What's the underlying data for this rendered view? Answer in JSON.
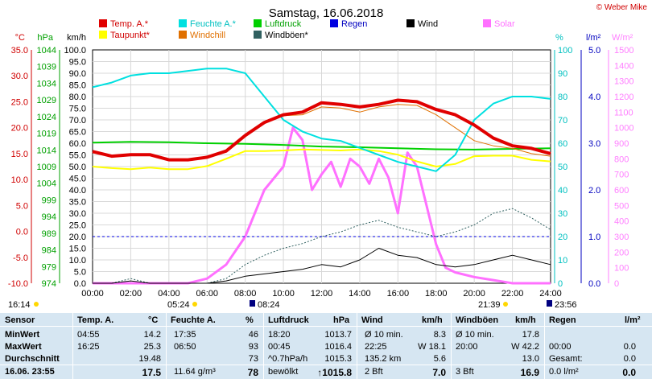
{
  "copyright": "© Weber Mike",
  "chart_data": {
    "type": "line",
    "title": "Samstag, 16.06.2018",
    "x_ticks": [
      "00:00",
      "02:00",
      "04:00",
      "06:00",
      "08:00",
      "10:00",
      "12:00",
      "14:00",
      "16:00",
      "18:00",
      "20:00",
      "22:00",
      "24:00"
    ],
    "xlim": [
      0,
      24
    ],
    "axes": {
      "temp": {
        "label": "°C",
        "ylim": [
          -10,
          35
        ],
        "ticks": [
          "35.0",
          "30.0",
          "25.0",
          "20.0",
          "15.0",
          "10.0",
          "5.0",
          "0.0",
          "-5.0",
          "-10.0"
        ],
        "color": "#d00000"
      },
      "pressure": {
        "label": "hPa",
        "ylim": [
          974,
          1044
        ],
        "ticks": [
          "1044",
          "1039",
          "1034",
          "1029",
          "1024",
          "1019",
          "1014",
          "1009",
          "1004",
          "999",
          "994",
          "989",
          "984",
          "979",
          "974"
        ],
        "color": "#00a000"
      },
      "wind": {
        "label": "km/h",
        "ylim": [
          0,
          100
        ],
        "ticks": [
          "100.0",
          "95.0",
          "90.0",
          "85.0",
          "80.0",
          "75.0",
          "70.0",
          "65.0",
          "60.0",
          "55.0",
          "50.0",
          "45.0",
          "40.0",
          "35.0",
          "30.0",
          "25.0",
          "20.0",
          "15.0",
          "10.0",
          "5.0",
          "0.0"
        ],
        "color": "#000000"
      },
      "humidity": {
        "label": "%",
        "ylim": [
          0,
          100
        ],
        "ticks": [
          "100",
          "90",
          "80",
          "70",
          "60",
          "50",
          "40",
          "30",
          "20",
          "10",
          "0"
        ],
        "color": "#00c0c0"
      },
      "rain": {
        "label": "l/m²",
        "ylim": [
          0,
          5
        ],
        "ticks": [
          "5.0",
          "4.0",
          "3.0",
          "2.0",
          "1.0",
          "0.0"
        ],
        "color": "#0000c0"
      },
      "solar": {
        "label": "W/m²",
        "ylim": [
          0,
          1500
        ],
        "ticks": [
          "1500",
          "1400",
          "1300",
          "1200",
          "1100",
          "1000",
          "900",
          "800",
          "700",
          "600",
          "500",
          "400",
          "300",
          "200",
          "100",
          "0"
        ],
        "color": "#ff80ff"
      }
    },
    "legend": [
      {
        "name": "Temp. A.*",
        "color": "#e00000"
      },
      {
        "name": "Feuchte A.*",
        "color": "#00e0e0"
      },
      {
        "name": "Luftdruck",
        "color": "#00d000"
      },
      {
        "name": "Regen",
        "color": "#0000e0"
      },
      {
        "name": "Wind",
        "color": "#000000"
      },
      {
        "name": "Solar",
        "color": "#ff70ff"
      },
      {
        "name": "Taupunkt*",
        "color": "#ffff00"
      },
      {
        "name": "Windchill",
        "color": "#e07000"
      },
      {
        "name": "Windböen*",
        "color": "#306060"
      }
    ],
    "series": [
      {
        "name": "Temp. A.*",
        "axis": "temp",
        "x": [
          0,
          1,
          2,
          3,
          4,
          5,
          6,
          7,
          8,
          9,
          10,
          11,
          12,
          13,
          14,
          15,
          16,
          17,
          18,
          19,
          20,
          21,
          22,
          23,
          24
        ],
        "y": [
          15.4,
          14.5,
          14.8,
          14.8,
          13.8,
          13.8,
          14.3,
          15.5,
          18.5,
          21.0,
          22.5,
          23.0,
          24.8,
          24.5,
          24.0,
          24.5,
          25.3,
          25.0,
          23.5,
          22.5,
          20.5,
          18.0,
          16.5,
          16.0,
          15.0
        ]
      },
      {
        "name": "Feuchte A.*",
        "axis": "humidity",
        "x": [
          0,
          1,
          2,
          3,
          4,
          5,
          6,
          7,
          8,
          9,
          10,
          11,
          12,
          13,
          14,
          15,
          16,
          17,
          18,
          19,
          20,
          21,
          22,
          23,
          24
        ],
        "y": [
          84,
          86,
          89,
          90,
          90,
          91,
          92,
          92,
          90,
          80,
          70,
          65,
          62,
          61,
          58,
          55,
          52,
          50,
          48,
          55,
          70,
          77,
          80,
          80,
          79
        ]
      },
      {
        "name": "Taupunkt*",
        "axis": "temp",
        "x": [
          0,
          1,
          2,
          3,
          4,
          5,
          6,
          7,
          8,
          9,
          10,
          11,
          12,
          13,
          14,
          15,
          16,
          17,
          18,
          19,
          20,
          21,
          22,
          23,
          24
        ],
        "y": [
          12.5,
          12.2,
          12.0,
          12.3,
          12.0,
          12.0,
          12.6,
          14.0,
          15.5,
          15.5,
          15.6,
          15.8,
          15.7,
          15.6,
          15.8,
          15.5,
          14.8,
          13.5,
          12.5,
          13.0,
          14.5,
          14.6,
          14.6,
          13.8,
          13.5
        ]
      },
      {
        "name": "Windchill",
        "axis": "temp",
        "x": [
          0,
          1,
          2,
          3,
          4,
          5,
          6,
          7,
          8,
          9,
          10,
          11,
          12,
          13,
          14,
          15,
          16,
          17,
          18,
          19,
          20,
          21,
          22,
          23,
          24
        ],
        "y": [
          15.4,
          14.5,
          14.8,
          14.8,
          13.8,
          13.8,
          14.3,
          15.5,
          18.3,
          20.8,
          22.3,
          22.5,
          24.0,
          23.8,
          23.0,
          24.0,
          24.5,
          24.3,
          22.5,
          20.0,
          17.5,
          16.5,
          16.0,
          15.0,
          14.5
        ]
      },
      {
        "name": "Luftdruck",
        "axis": "pressure",
        "x": [
          0,
          2,
          4,
          6,
          8,
          10,
          12,
          14,
          16,
          18,
          20,
          22,
          24
        ],
        "y": [
          1016.2,
          1016.4,
          1016.3,
          1016.0,
          1015.8,
          1015.5,
          1015.0,
          1014.8,
          1014.5,
          1014.2,
          1014.1,
          1014.3,
          1014.5
        ]
      },
      {
        "name": "Wind",
        "axis": "wind",
        "x": [
          0,
          1,
          2,
          3,
          4,
          5,
          6,
          7,
          8,
          9,
          10,
          11,
          12,
          13,
          14,
          15,
          16,
          17,
          18,
          19,
          20,
          21,
          22,
          23,
          24
        ],
        "y": [
          0,
          0,
          1,
          0,
          0,
          0,
          0,
          1,
          3,
          4,
          5,
          6,
          8,
          7,
          10,
          15,
          12,
          11,
          8,
          7,
          8,
          10,
          12,
          10,
          8
        ]
      },
      {
        "name": "Windböen*",
        "axis": "wind",
        "x": [
          0,
          1,
          2,
          3,
          4,
          5,
          6,
          7,
          8,
          9,
          10,
          11,
          12,
          13,
          14,
          15,
          16,
          17,
          18,
          19,
          20,
          21,
          22,
          23,
          24
        ],
        "y": [
          0,
          0,
          2,
          0,
          0,
          0,
          0,
          2,
          8,
          12,
          15,
          17,
          20,
          22,
          25,
          27,
          24,
          22,
          20,
          22,
          25,
          30,
          32,
          28,
          23
        ]
      },
      {
        "name": "Solar",
        "axis": "solar",
        "x": [
          0,
          5,
          6,
          7,
          8,
          9,
          10,
          10.5,
          11,
          11.5,
          12,
          12.5,
          13,
          13.5,
          14,
          14.5,
          15,
          15.5,
          16,
          16.5,
          17,
          17.5,
          18,
          18.5,
          19,
          20,
          21,
          22,
          23,
          24
        ],
        "y": [
          0,
          0,
          30,
          120,
          300,
          600,
          750,
          1000,
          920,
          600,
          700,
          780,
          620,
          800,
          750,
          640,
          800,
          680,
          450,
          840,
          750,
          500,
          250,
          100,
          70,
          40,
          20,
          0,
          0,
          0
        ]
      },
      {
        "name": "Regen",
        "axis": "rain",
        "x": [
          0,
          24
        ],
        "y": [
          1.0,
          1.0
        ]
      }
    ],
    "annotations": {
      "left": "16:14",
      "sunrise": "05:24",
      "twilight_start": "08:24",
      "sunset": "21:39",
      "twilight_end": "23:56"
    }
  },
  "table": {
    "headers": [
      "Sensor",
      "Temp. A.",
      "°C",
      "Feuchte A.",
      "%",
      "Luftdruck",
      "hPa",
      "Wind",
      "km/h",
      "Windböen",
      "km/h",
      "Regen",
      "l/m²"
    ],
    "row_labels": [
      "MinWert",
      "MaxWert",
      "Durchschnitt",
      "16.06. 23:55"
    ],
    "rows": [
      [
        "04:55",
        "14.2",
        "17:35",
        "46",
        "18:20",
        "1013.7",
        "Ø 10 min.",
        "8.3",
        "Ø 10 min.",
        "17.8",
        "",
        ""
      ],
      [
        "16:25",
        "25.3",
        "06:50",
        "93",
        "00:45",
        "1016.4",
        "22:25",
        "W 18.1",
        "20:00",
        "W 42.2",
        "00:00",
        "0.0"
      ],
      [
        "",
        "19.48",
        "",
        "73",
        "^0.7hPa/h",
        "1015.3",
        "135.2 km",
        "5.6",
        "",
        "13.0",
        "Gesamt:",
        "0.0"
      ],
      [
        "",
        "17.5",
        "11.64 g/m³",
        "78",
        "bewölkt",
        "↑1015.8",
        "2 Bft",
        "7.0",
        "3 Bft",
        "16.9",
        "0.0 l/m²",
        "0.0"
      ]
    ]
  }
}
